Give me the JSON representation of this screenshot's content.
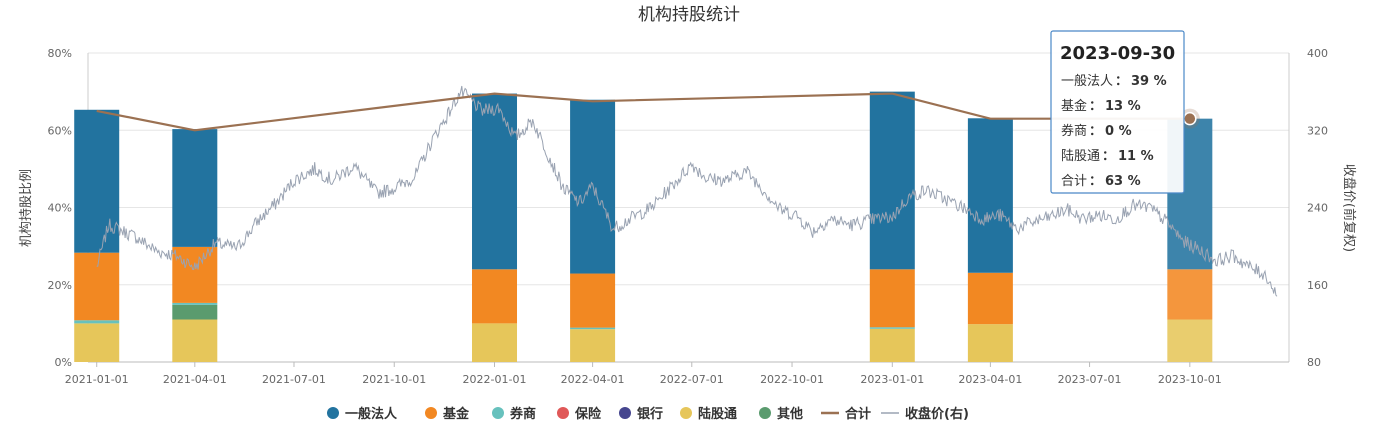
{
  "chart_data": {
    "type": "bar",
    "title": "机构持股统计",
    "ylabel": "机构持股比例",
    "y2label": "收盘价(前复权)",
    "ylim": [
      0,
      80
    ],
    "y2lim": [
      80,
      400
    ],
    "yticks": [
      "0%",
      "20%",
      "40%",
      "60%",
      "80%"
    ],
    "y2ticks": [
      "80",
      "160",
      "240",
      "320",
      "400"
    ],
    "xrange": [
      "2020-12-24",
      "2023-12-31"
    ],
    "xticks": [
      "2021-01-01",
      "2021-04-01",
      "2021-07-01",
      "2021-10-01",
      "2022-01-01",
      "2022-04-01",
      "2022-07-01",
      "2022-10-01",
      "2023-01-01",
      "2023-04-01",
      "2023-07-01",
      "2023-10-01"
    ],
    "stack_dates": [
      "2021-01-01",
      "2021-04-01",
      "2022-01-01",
      "2022-04-01",
      "2023-01-01",
      "2023-04-01",
      "2023-10-01"
    ],
    "series": [
      {
        "name": "一般法人",
        "color": "#22739f",
        "values": [
          37,
          30.5,
          45.5,
          45,
          46,
          40,
          39
        ]
      },
      {
        "name": "基金",
        "color": "#f28822",
        "values": [
          17.5,
          14.5,
          14,
          14,
          15,
          13.3,
          13
        ]
      },
      {
        "name": "券商",
        "color": "#67c1bd",
        "values": [
          0.8,
          0.5,
          0,
          0.4,
          0.4,
          0,
          0
        ]
      },
      {
        "name": "保险",
        "color": "#e05858",
        "values": [
          0,
          0,
          0,
          0,
          0,
          0,
          0
        ]
      },
      {
        "name": "银行",
        "color": "#46468f",
        "values": [
          0,
          0,
          0,
          0,
          0,
          0,
          0
        ]
      },
      {
        "name": "陆股通",
        "color": "#e6c65a",
        "values": [
          10,
          11,
          10,
          8.5,
          8.6,
          9.8,
          11
        ]
      },
      {
        "name": "其他",
        "color": "#5a9b6e",
        "values": [
          0,
          3.8,
          0,
          0,
          0,
          0,
          0
        ]
      }
    ],
    "total": {
      "name": "合计",
      "color": "#9b7152",
      "dates": [
        "2021-01-01",
        "2021-04-01",
        "2022-01-01",
        "2022-04-01",
        "2023-01-01",
        "2023-04-01",
        "2023-10-01"
      ],
      "values": [
        65,
        60,
        69.5,
        67.5,
        69.5,
        63,
        63
      ]
    },
    "price": {
      "name": "收盘价(右)",
      "color": "#9aa3b2",
      "anchors": [
        [
          "2021-01-01",
          178
        ],
        [
          "2021-01-12",
          222
        ],
        [
          "2021-02-05",
          210
        ],
        [
          "2021-02-25",
          195
        ],
        [
          "2021-03-15",
          190
        ],
        [
          "2021-04-01",
          178
        ],
        [
          "2021-04-20",
          203
        ],
        [
          "2021-05-10",
          198
        ],
        [
          "2021-05-28",
          225
        ],
        [
          "2021-06-15",
          245
        ],
        [
          "2021-07-01",
          268
        ],
        [
          "2021-07-20",
          280
        ],
        [
          "2021-08-05",
          268
        ],
        [
          "2021-08-25",
          283
        ],
        [
          "2021-09-15",
          255
        ],
        [
          "2021-10-01",
          260
        ],
        [
          "2021-10-20",
          272
        ],
        [
          "2021-11-05",
          310
        ],
        [
          "2021-11-20",
          338
        ],
        [
          "2021-12-01",
          360
        ],
        [
          "2021-12-10",
          352
        ],
        [
          "2021-12-20",
          340
        ],
        [
          "2022-01-05",
          343
        ],
        [
          "2022-01-20",
          312
        ],
        [
          "2022-02-05",
          330
        ],
        [
          "2022-02-20",
          293
        ],
        [
          "2022-03-05",
          260
        ],
        [
          "2022-03-20",
          245
        ],
        [
          "2022-04-01",
          262
        ],
        [
          "2022-04-20",
          218
        ],
        [
          "2022-05-05",
          228
        ],
        [
          "2022-05-25",
          240
        ],
        [
          "2022-06-15",
          265
        ],
        [
          "2022-07-01",
          285
        ],
        [
          "2022-07-15",
          270
        ],
        [
          "2022-08-01",
          268
        ],
        [
          "2022-08-20",
          278
        ],
        [
          "2022-09-05",
          258
        ],
        [
          "2022-09-20",
          238
        ],
        [
          "2022-10-05",
          232
        ],
        [
          "2022-10-20",
          215
        ],
        [
          "2022-11-05",
          228
        ],
        [
          "2022-11-25",
          222
        ],
        [
          "2022-12-15",
          228
        ],
        [
          "2023-01-01",
          230
        ],
        [
          "2023-01-15",
          250
        ],
        [
          "2023-02-01",
          258
        ],
        [
          "2023-02-20",
          248
        ],
        [
          "2023-03-10",
          238
        ],
        [
          "2023-03-25",
          228
        ],
        [
          "2023-04-10",
          232
        ],
        [
          "2023-04-25",
          218
        ],
        [
          "2023-05-10",
          225
        ],
        [
          "2023-05-25",
          230
        ],
        [
          "2023-06-10",
          238
        ],
        [
          "2023-06-25",
          228
        ],
        [
          "2023-07-10",
          232
        ],
        [
          "2023-07-25",
          228
        ],
        [
          "2023-08-10",
          242
        ],
        [
          "2023-08-25",
          240
        ],
        [
          "2023-09-10",
          225
        ],
        [
          "2023-09-25",
          205
        ],
        [
          "2023-10-10",
          196
        ],
        [
          "2023-10-25",
          185
        ],
        [
          "2023-11-10",
          190
        ],
        [
          "2023-11-25",
          178
        ],
        [
          "2023-12-10",
          170
        ],
        [
          "2023-12-20",
          148
        ]
      ]
    },
    "legend": [
      "一般法人",
      "基金",
      "券商",
      "保险",
      "银行",
      "陆股通",
      "其他",
      "合计",
      "收盘价(右)"
    ],
    "legend_position": "bottom"
  },
  "tooltip": {
    "date": "2023-09-30",
    "rows": [
      {
        "label": "一般法人",
        "value": "39 %"
      },
      {
        "label": "基金",
        "value": "13 %"
      },
      {
        "label": "券商",
        "value": "0 %"
      },
      {
        "label": "陆股通",
        "value": "11 %"
      },
      {
        "label": "合计",
        "value": "63 %"
      }
    ]
  }
}
